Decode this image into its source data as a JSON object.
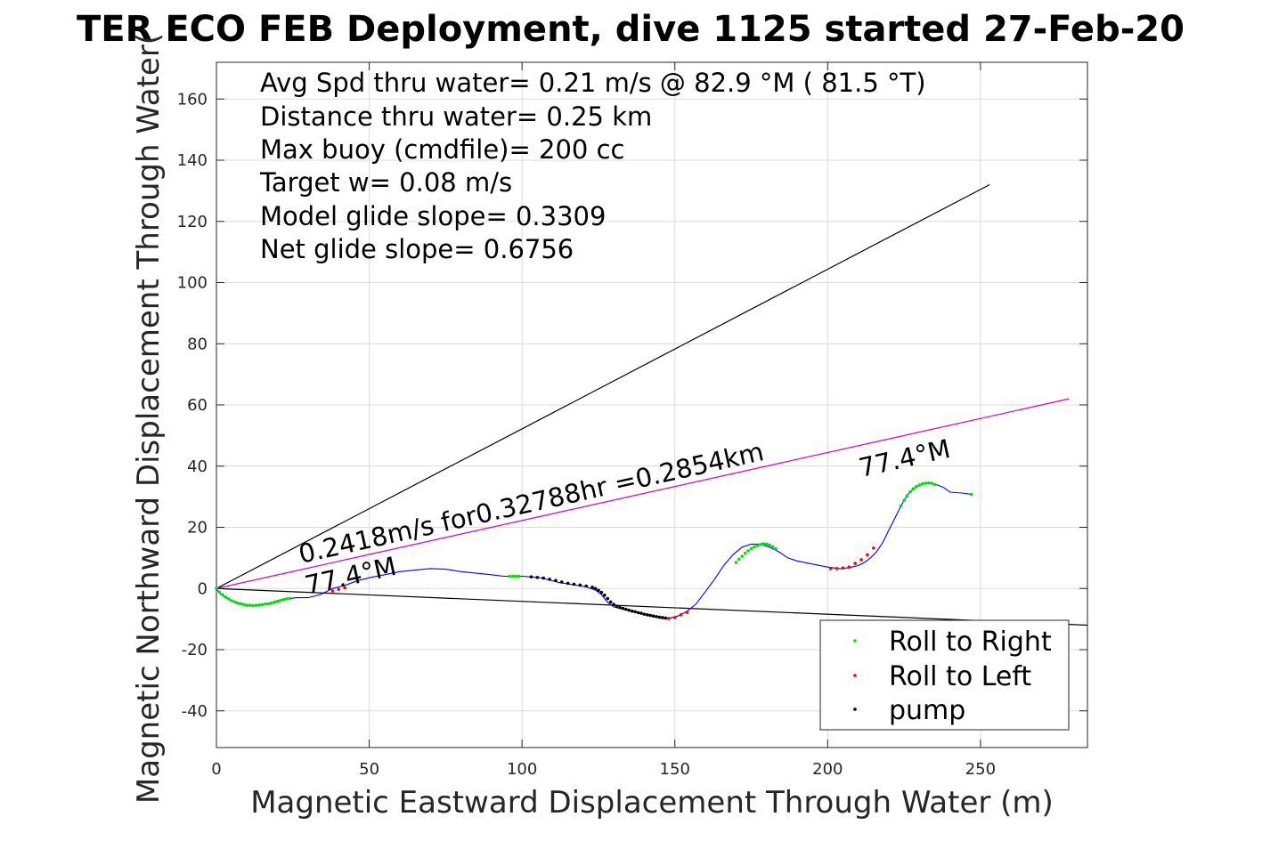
{
  "chart_data": {
    "type": "line",
    "title": "TER ECO FEB Deployment, dive 1125 started 27-Feb-20",
    "xlabel": "Magnetic Eastward Displacement Through Water (m)",
    "ylabel": "Magnetic Northward Displacement Through Water(",
    "xlim": [
      0,
      285
    ],
    "ylim": [
      -52,
      172
    ],
    "xticks": [
      0,
      50,
      100,
      150,
      200,
      250
    ],
    "yticks": [
      -40,
      -20,
      0,
      20,
      40,
      60,
      80,
      100,
      120,
      140,
      160
    ],
    "grid": true,
    "legend_position": "bottom-right",
    "info_lines": [
      "Avg Spd thru water=  0.21 m/s @  82.9 °M ( 81.5 °T)",
      "Distance thru water=  0.25 km",
      "Max buoy (cmdfile)= 200 cc",
      "Target w= 0.08 m/s",
      "Model glide slope= 0.3309",
      "Net glide slope= 0.6756"
    ],
    "annotations": {
      "heading_start": "77.4°M",
      "heading_end": "77.4°M",
      "net_speed": "0.2418m/s for0.32788hr =0.2854km"
    },
    "legend": [
      {
        "label": "Roll to Right",
        "color": "#00e000"
      },
      {
        "label": "Roll to Left",
        "color": "#ff0000"
      },
      {
        "label": "pump",
        "color": "#000000"
      }
    ],
    "reference_lines": [
      {
        "name": "upper-glide-bound",
        "color": "#000000",
        "x": [
          0,
          253
        ],
        "y": [
          0,
          132
        ]
      },
      {
        "name": "lower-glide-bound",
        "color": "#000000",
        "x": [
          0,
          285
        ],
        "y": [
          0,
          -12
        ]
      },
      {
        "name": "net-track",
        "color": "#cc00cc",
        "x": [
          0,
          279
        ],
        "y": [
          0,
          62
        ]
      }
    ],
    "track": {
      "color": "#0000ff",
      "x": [
        0,
        1,
        3,
        5,
        8,
        11,
        14,
        17,
        20,
        23,
        26,
        30,
        34,
        38,
        42,
        46,
        50,
        55,
        60,
        65,
        70,
        75,
        80,
        85,
        90,
        94,
        97,
        100,
        103,
        106,
        109,
        112,
        115,
        118,
        121,
        124,
        126,
        128,
        130,
        133,
        136,
        139,
        142,
        145,
        148,
        151,
        154,
        157,
        160,
        163,
        166,
        169,
        172,
        175,
        178,
        181,
        184,
        187,
        190,
        195,
        200,
        204,
        207,
        210,
        212,
        214,
        216,
        218,
        220,
        222,
        224,
        226,
        228,
        230,
        232,
        234,
        236,
        238,
        240,
        244,
        247
      ],
      "y": [
        0,
        -1.5,
        -3,
        -4,
        -5,
        -5.5,
        -5.5,
        -5,
        -4,
        -3.5,
        -3,
        -3,
        -2,
        0,
        1,
        2.5,
        3.5,
        4.5,
        5.5,
        6,
        6.5,
        6.3,
        5.5,
        5,
        4.5,
        4,
        4,
        4,
        3.8,
        3.5,
        2.8,
        2,
        1.5,
        1,
        0.5,
        -0.5,
        -2,
        -4.5,
        -6,
        -6.8,
        -7.5,
        -8.3,
        -9,
        -9.5,
        -9.8,
        -9,
        -7.5,
        -5,
        -1,
        3,
        7.5,
        11,
        13.5,
        14.5,
        14.5,
        13.5,
        12,
        10,
        9,
        8,
        7,
        6.5,
        6.8,
        7.5,
        8.5,
        10,
        12,
        15,
        19,
        23,
        27,
        30.5,
        32.5,
        33.8,
        34.3,
        34.5,
        33.8,
        33,
        31.5,
        31.2,
        30.8
      ]
    },
    "markers": {
      "roll_right": {
        "color": "#00e000",
        "x": [
          0,
          1,
          2,
          3,
          4,
          5,
          6,
          7,
          8,
          9,
          10,
          11,
          12,
          13,
          14,
          15,
          16,
          17,
          18,
          19,
          20,
          21,
          22,
          23,
          24,
          96,
          97,
          98,
          99,
          170,
          171,
          172,
          173,
          174,
          175,
          176,
          177,
          178,
          179,
          180,
          181,
          182,
          183,
          224,
          225,
          226,
          227,
          228,
          229,
          230,
          231,
          232,
          233,
          234,
          235,
          247
        ],
        "y": [
          0,
          -1.2,
          -2,
          -2.8,
          -3.4,
          -4,
          -4.4,
          -4.8,
          -5,
          -5.3,
          -5.5,
          -5.5,
          -5.6,
          -5.5,
          -5.4,
          -5.3,
          -5.1,
          -5,
          -4.8,
          -4.5,
          -4.2,
          -3.9,
          -3.6,
          -3.4,
          -3.2,
          4,
          4,
          4,
          4,
          8.5,
          9.6,
          10.5,
          11.5,
          12.3,
          13,
          13.6,
          14,
          14.4,
          14.6,
          14.5,
          14.2,
          13.7,
          13,
          27,
          28.8,
          30.3,
          31.6,
          32.6,
          33.3,
          33.8,
          34.2,
          34.4,
          34.5,
          34.4,
          34,
          30.8
        ]
      },
      "roll_left": {
        "color": "#ff0000",
        "x": [
          38,
          40,
          42,
          146,
          148,
          150,
          152,
          154,
          201,
          203,
          205,
          207,
          209,
          211,
          213,
          215
        ],
        "y": [
          -0.8,
          -0.3,
          0.2,
          -9.6,
          -9.8,
          -9.5,
          -8.6,
          -7.8,
          6.5,
          6.5,
          6.7,
          7,
          8.2,
          9.4,
          11,
          13.2
        ]
      },
      "pump": {
        "color": "#000000",
        "x": [
          103,
          105,
          107,
          109,
          111,
          113,
          115,
          117,
          119,
          121,
          123,
          124,
          125,
          126,
          127,
          128,
          129,
          130,
          131,
          132,
          133,
          134,
          135,
          136,
          137,
          138,
          139,
          140,
          141,
          142,
          143,
          144,
          145,
          146,
          147
        ],
        "y": [
          3.8,
          3.6,
          3.4,
          3,
          2.6,
          2.1,
          1.7,
          1.4,
          1.1,
          0.8,
          0.4,
          0,
          -0.6,
          -1.3,
          -2.2,
          -3.3,
          -4.4,
          -5.2,
          -5.8,
          -6.2,
          -6.5,
          -6.8,
          -7.1,
          -7.4,
          -7.6,
          -7.9,
          -8.1,
          -8.4,
          -8.6,
          -8.8,
          -9,
          -9.2,
          -9.4,
          -9.5,
          -9.7
        ]
      }
    }
  }
}
